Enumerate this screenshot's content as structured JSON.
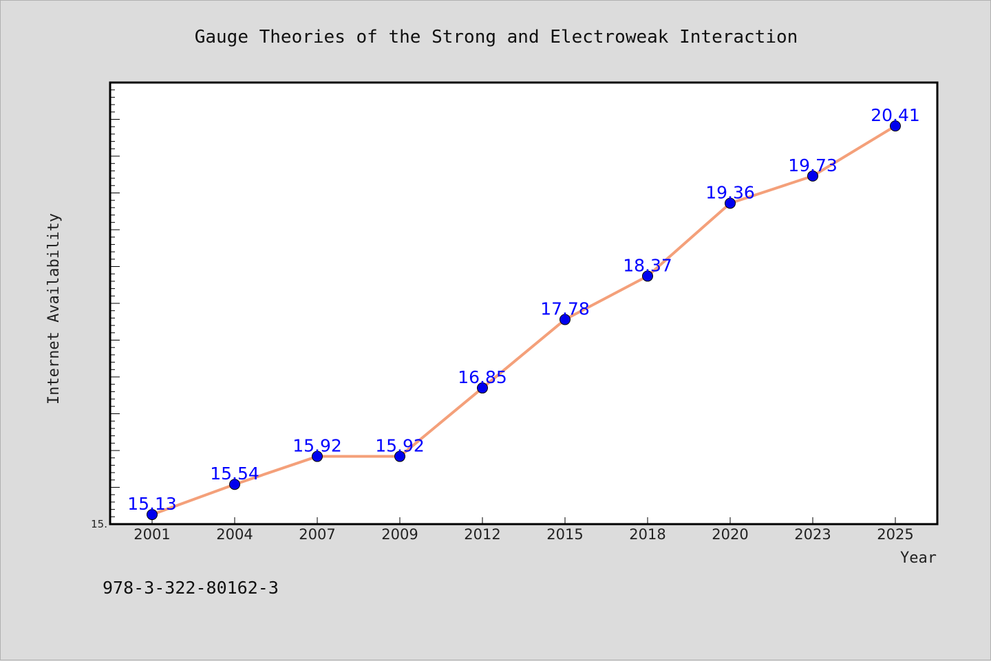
{
  "chart_data": {
    "type": "line",
    "title": "Gauge Theories of the Strong and Electroweak Interaction",
    "xlabel": "Year",
    "ylabel": "Internet Availability",
    "categories": [
      "2001",
      "2004",
      "2007",
      "2009",
      "2012",
      "2015",
      "2018",
      "2020",
      "2023",
      "2025"
    ],
    "series": [
      {
        "values": [
          15.13,
          15.54,
          15.92,
          15.92,
          16.85,
          17.78,
          18.37,
          19.36,
          19.73,
          20.41
        ],
        "data_labels": [
          "15.13",
          "15.54",
          "15.92",
          "15.92",
          "16.85",
          "17.78",
          "18.37",
          "19.36",
          "19.73",
          "20.41"
        ]
      }
    ],
    "ylim": [
      15.0,
      21.0
    ],
    "y_tick_labels": [
      "15."
    ],
    "grid": false,
    "line_color": "#f4a07a",
    "marker_color": "#0000ee",
    "label_color": "#0000ff",
    "background": "#dcdcdc",
    "plot_background": "#ffffff"
  },
  "footer": {
    "isbn": "978-3-322-80162-3"
  }
}
